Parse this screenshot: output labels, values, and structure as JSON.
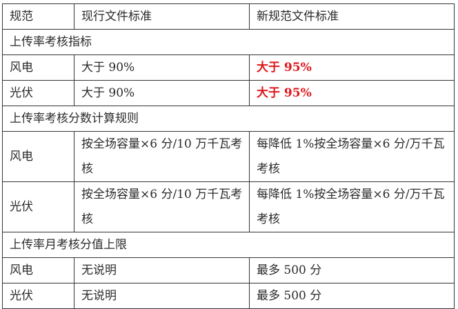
{
  "header": {
    "col1": "规范",
    "col2": "现行文件标准",
    "col3": "新规范文件标准"
  },
  "sections": [
    {
      "title": "上传率考核指标",
      "rows": [
        {
          "type": "风电",
          "current": "大于 90%",
          "new": "大于 95%"
        },
        {
          "type": "光伏",
          "current": "大于 90%",
          "new": "大于 95%"
        }
      ]
    },
    {
      "title": "上传率考核分数计算规则",
      "rows": [
        {
          "type": "风电",
          "current": "按全场容量×6 分/10 万千瓦考核",
          "new": "每降低 1%按全场容量×6 分/万千瓦考核"
        },
        {
          "type": "光伏",
          "current": "按全场容量×6 分/10 万千瓦考核",
          "new": "每降低 1%按全场容量×6 分/万千瓦考核"
        }
      ]
    },
    {
      "title": "上传率月考核分值上限",
      "rows": [
        {
          "type": "风电",
          "current": "无说明",
          "new": "最多 500 分"
        },
        {
          "type": "光伏",
          "current": "无说明",
          "new": "最多 500 分"
        }
      ]
    }
  ],
  "colors": {
    "highlight": "#e0161b",
    "border": "#333333",
    "text": "#2a2a2a"
  }
}
